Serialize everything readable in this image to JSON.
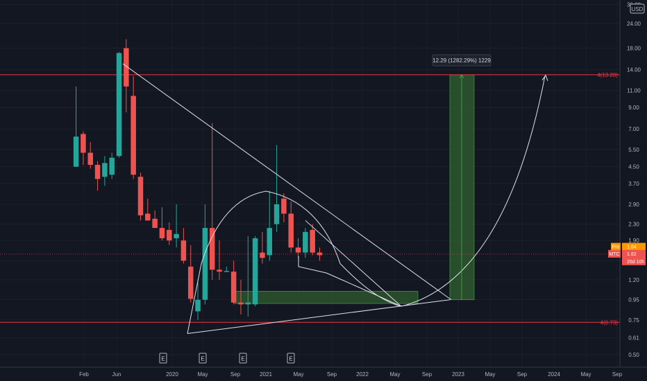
{
  "chart_data": {
    "type": "candlestick",
    "currency": "USD",
    "price_scale": "log",
    "y_ticks": [
      "0.50",
      "0.61",
      "0.75",
      "0.95",
      "1.20",
      "1.50",
      "1.90",
      "2.30",
      "2.90",
      "3.70",
      "4.50",
      "5.50",
      "7.00",
      "9.00",
      "11.00",
      "14.00",
      "18.00",
      "24.00",
      "30.00"
    ],
    "x_ticks": [
      "Feb",
      "Jun",
      "2020",
      "May",
      "Sep",
      "2021",
      "May",
      "Sep",
      "2022",
      "May",
      "Sep",
      "2023",
      "May",
      "Sep",
      "2024",
      "May",
      "Sep"
    ],
    "candles": [
      {
        "o": 4.5,
        "h": 11.5,
        "l": 4.5,
        "c": 6.4
      },
      {
        "o": 6.6,
        "h": 6.8,
        "l": 4.6,
        "c": 5.3
      },
      {
        "o": 5.3,
        "h": 6.0,
        "l": 4.4,
        "c": 4.6
      },
      {
        "o": 4.6,
        "h": 4.8,
        "l": 3.4,
        "c": 3.9
      },
      {
        "o": 4.0,
        "h": 5.1,
        "l": 3.6,
        "c": 4.7
      },
      {
        "o": 4.1,
        "h": 5.3,
        "l": 3.9,
        "c": 5.0
      },
      {
        "o": 5.1,
        "h": 17.2,
        "l": 5.0,
        "c": 17.0
      },
      {
        "o": 18.0,
        "h": 20.0,
        "l": 8.5,
        "c": 11.5
      },
      {
        "o": 10.3,
        "h": 13.0,
        "l": 3.9,
        "c": 4.1
      },
      {
        "o": 4.0,
        "h": 4.2,
        "l": 2.4,
        "c": 2.55
      },
      {
        "o": 2.6,
        "h": 3.1,
        "l": 2.4,
        "c": 2.4
      },
      {
        "o": 2.45,
        "h": 2.7,
        "l": 2.2,
        "c": 2.2
      },
      {
        "o": 2.2,
        "h": 2.8,
        "l": 1.9,
        "c": 1.95
      },
      {
        "o": 2.15,
        "h": 2.35,
        "l": 1.8,
        "c": 1.9
      },
      {
        "o": 1.95,
        "h": 2.9,
        "l": 1.75,
        "c": 2.05
      },
      {
        "o": 1.9,
        "h": 2.2,
        "l": 1.45,
        "c": 1.5
      },
      {
        "o": 1.4,
        "h": 1.8,
        "l": 0.92,
        "c": 0.96
      },
      {
        "o": 0.83,
        "h": 1.2,
        "l": 0.75,
        "c": 0.95
      },
      {
        "o": 0.95,
        "h": 2.9,
        "l": 0.9,
        "c": 2.2
      },
      {
        "o": 2.2,
        "h": 7.5,
        "l": 1.2,
        "c": 1.35
      },
      {
        "o": 1.35,
        "h": 1.9,
        "l": 1.2,
        "c": 1.32
      },
      {
        "o": 1.33,
        "h": 1.4,
        "l": 1.32,
        "c": 1.33
      },
      {
        "o": 1.32,
        "h": 1.5,
        "l": 0.9,
        "c": 0.92
      },
      {
        "o": 0.92,
        "h": 1.2,
        "l": 0.8,
        "c": 0.9
      },
      {
        "o": 0.9,
        "h": 2.0,
        "l": 0.78,
        "c": 0.92
      },
      {
        "o": 0.9,
        "h": 2.0,
        "l": 0.88,
        "c": 1.95
      },
      {
        "o": 1.65,
        "h": 2.1,
        "l": 1.45,
        "c": 1.55
      },
      {
        "o": 1.6,
        "h": 3.4,
        "l": 1.5,
        "c": 2.2
      },
      {
        "o": 2.3,
        "h": 5.8,
        "l": 2.1,
        "c": 2.9
      },
      {
        "o": 3.1,
        "h": 3.3,
        "l": 2.35,
        "c": 2.6
      },
      {
        "o": 2.6,
        "h": 3.0,
        "l": 1.65,
        "c": 1.75
      },
      {
        "o": 1.75,
        "h": 1.95,
        "l": 1.55,
        "c": 1.65
      },
      {
        "o": 1.65,
        "h": 2.2,
        "l": 1.55,
        "c": 2.1
      },
      {
        "o": 2.15,
        "h": 2.3,
        "l": 1.6,
        "c": 1.65
      },
      {
        "o": 1.65,
        "h": 1.75,
        "l": 1.5,
        "c": 1.6
      }
    ],
    "horizontal_lines": [
      {
        "label": "4(13.20)",
        "value": 13.2
      },
      {
        "label": "4(0.73)",
        "value": 0.73
      }
    ],
    "measure_label": "12.29 (1282.29%) 1229",
    "price_badges": [
      {
        "label": "Pre",
        "value": "1.64"
      },
      {
        "label": "MTC",
        "value": "1.62",
        "sub": "26d 10h"
      }
    ],
    "earnings_markers": [
      "E",
      "E",
      "E",
      "E"
    ],
    "colors": {
      "up": "#26a69a",
      "down": "#ef5350",
      "bg": "#131722",
      "grid": "#363a45",
      "text": "#b2b5be",
      "hline": "#f23645",
      "zone": "#2e5c2e",
      "zone_edge": "#4caf50",
      "drawing": "#e0e3eb",
      "pre": "#ff9800"
    }
  }
}
